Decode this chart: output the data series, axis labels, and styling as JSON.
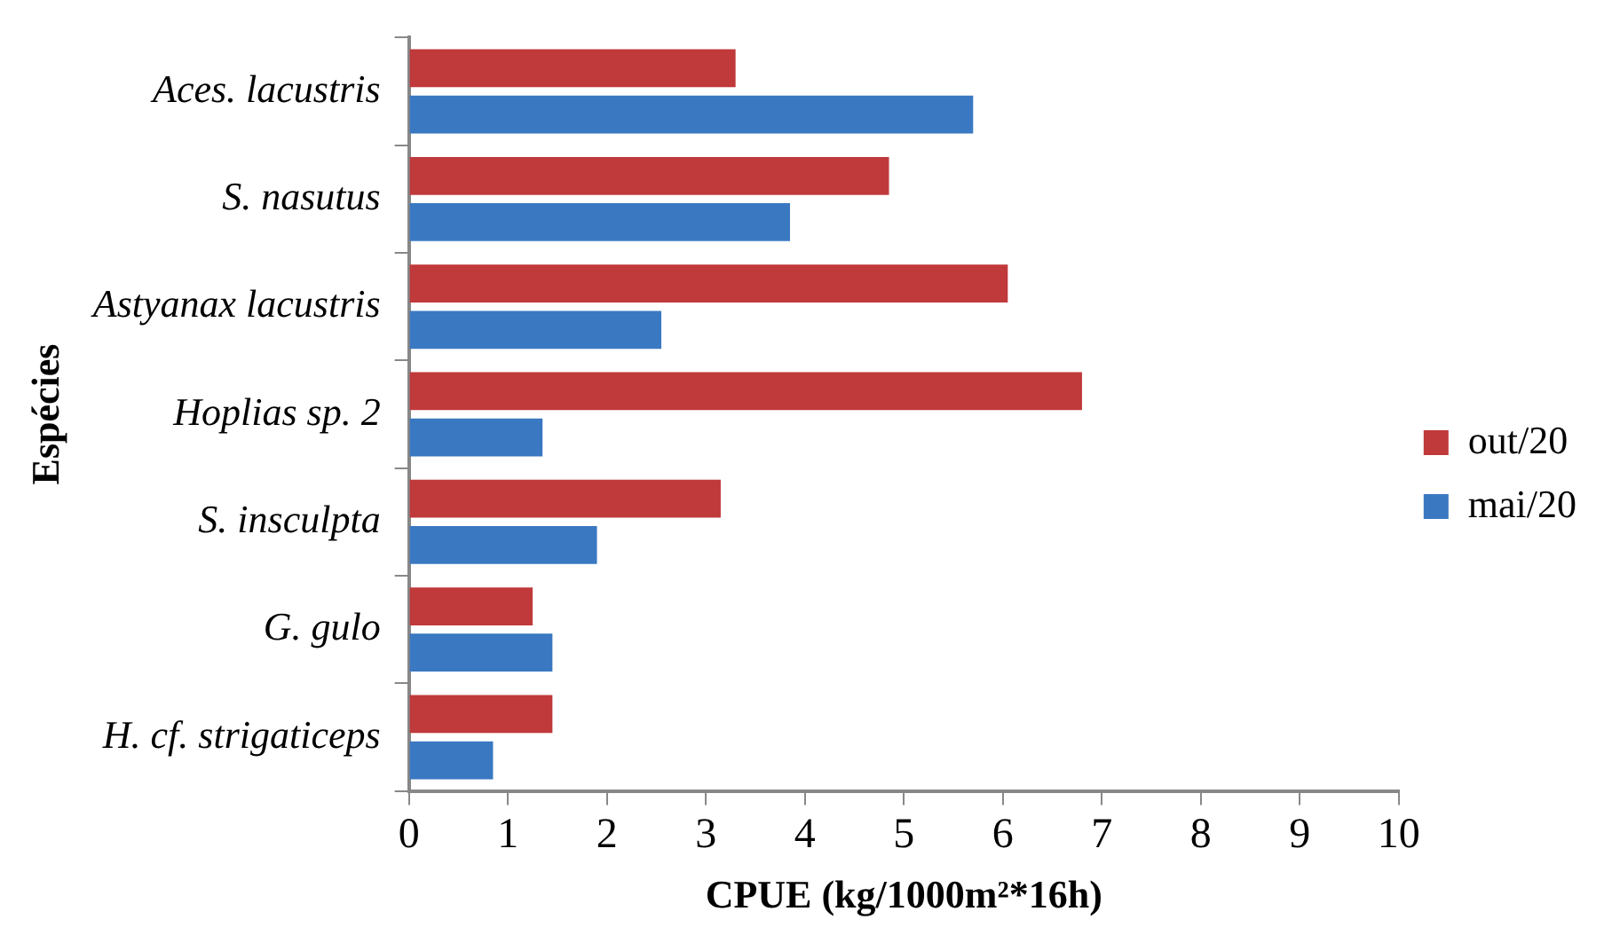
{
  "chart_data": {
    "type": "bar",
    "orientation": "horizontal",
    "xlabel": "CPUE (kg/1000m²*16h)",
    "ylabel": "Espécies",
    "categories": [
      "Aces. lacustris",
      "S. nasutus",
      "Astyanax lacustris",
      "Hoplias sp. 2",
      "S. insculpta",
      "G. gulo",
      "H. cf. strigaticeps"
    ],
    "series": [
      {
        "name": "out/20",
        "color": "#c0393b",
        "values": [
          3.3,
          4.85,
          6.05,
          6.8,
          3.15,
          1.25,
          1.45
        ]
      },
      {
        "name": "mai/20",
        "color": "#3a78c2",
        "values": [
          5.7,
          3.85,
          2.55,
          1.35,
          1.9,
          1.45,
          0.85
        ]
      }
    ],
    "xlim": [
      0,
      10
    ],
    "xticks": [
      0,
      1,
      2,
      3,
      4,
      5,
      6,
      7,
      8,
      9,
      10
    ],
    "grid": false,
    "legend": "right"
  }
}
